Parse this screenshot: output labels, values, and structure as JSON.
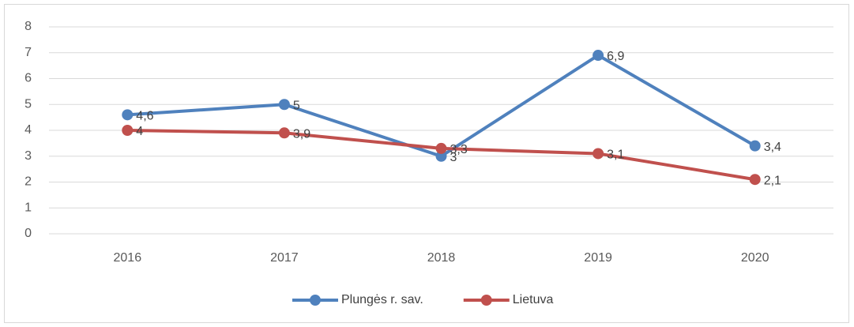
{
  "chart_data": {
    "type": "line",
    "categories": [
      "2016",
      "2017",
      "2018",
      "2019",
      "2020"
    ],
    "series": [
      {
        "name": "Plungės r. sav.",
        "color": "#4f81bd",
        "values": [
          4.6,
          5,
          3,
          6.9,
          3.4
        ],
        "value_labels": [
          "4,6",
          "5",
          "3",
          "6,9",
          "3,4"
        ]
      },
      {
        "name": "Lietuva",
        "color": "#c0504d",
        "values": [
          4,
          3.9,
          3.3,
          3.1,
          2.1
        ],
        "value_labels": [
          "4",
          "3,9",
          "3,3",
          "3,1",
          "2,1"
        ]
      }
    ],
    "ylim": [
      0,
      8
    ],
    "yticks": [
      0,
      1,
      2,
      3,
      4,
      5,
      6,
      7,
      8
    ],
    "grid": true,
    "legend": "bottom"
  }
}
